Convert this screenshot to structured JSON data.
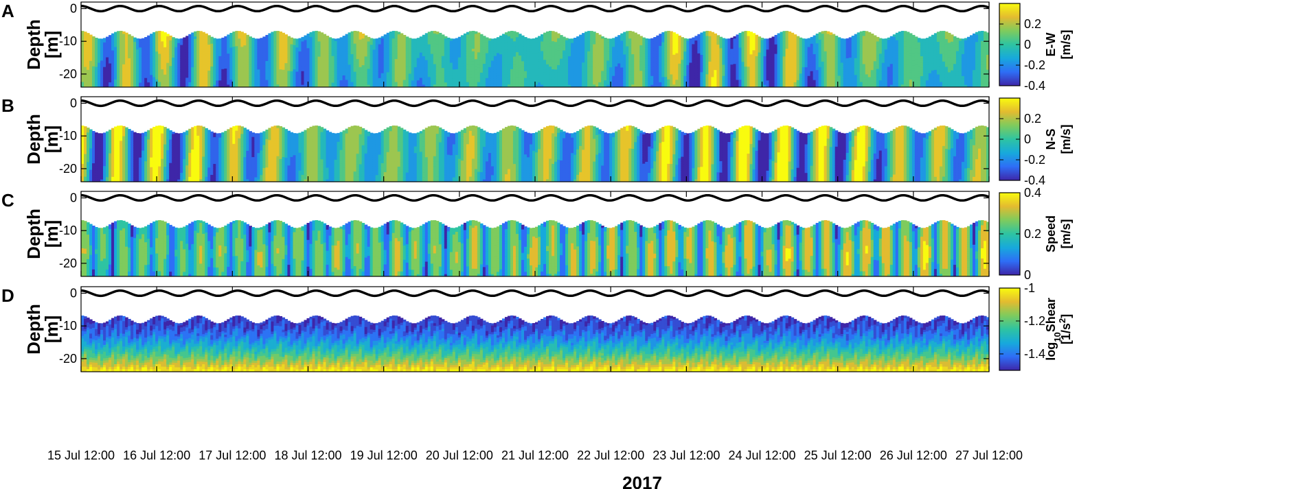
{
  "chart_data": [
    {
      "type": "heatmap",
      "panel_label": "A",
      "ylabel": [
        "Depth",
        "[m]"
      ],
      "yticks": [
        0,
        -10,
        -20
      ],
      "ylim": [
        -24,
        2
      ],
      "colorbar": {
        "label": [
          "E-W",
          "[m/s]"
        ],
        "ticks": [
          "0.2",
          "0",
          "-0.2",
          "-0.4"
        ],
        "tick_values": [
          0.2,
          0,
          -0.2,
          -0.4
        ],
        "range": [
          -0.4,
          0.4
        ]
      },
      "field": "eastward_velocity",
      "x_start": "15 Jul 12:00",
      "x_end": "27 Jul 12:00"
    },
    {
      "type": "heatmap",
      "panel_label": "B",
      "ylabel": [
        "Depth",
        "[m]"
      ],
      "yticks": [
        0,
        -10,
        -20
      ],
      "ylim": [
        -24,
        2
      ],
      "colorbar": {
        "label": [
          "N-S",
          "[m/s]"
        ],
        "ticks": [
          "0.2",
          "0",
          "-0.2",
          "-0.4"
        ],
        "tick_values": [
          0.2,
          0,
          -0.2,
          -0.4
        ],
        "range": [
          -0.4,
          0.4
        ]
      },
      "field": "northward_velocity",
      "x_start": "15 Jul 12:00",
      "x_end": "27 Jul 12:00"
    },
    {
      "type": "heatmap",
      "panel_label": "C",
      "ylabel": [
        "Depth",
        "[m]"
      ],
      "yticks": [
        0,
        -10,
        -20
      ],
      "ylim": [
        -24,
        2
      ],
      "colorbar": {
        "label": [
          "Speed",
          "[m/s]"
        ],
        "ticks": [
          "0.4",
          "0.2",
          "0"
        ],
        "tick_values": [
          0.4,
          0.2,
          0
        ],
        "range": [
          0,
          0.4
        ]
      },
      "field": "speed",
      "x_start": "15 Jul 12:00",
      "x_end": "27 Jul 12:00"
    },
    {
      "type": "heatmap",
      "panel_label": "D",
      "ylabel": [
        "Depth",
        "[m]"
      ],
      "yticks": [
        0,
        -10,
        -20
      ],
      "ylim": [
        -24,
        2
      ],
      "colorbar": {
        "label": [
          "log10Shear",
          "[1/s2]"
        ],
        "ticks": [
          "-1",
          "-1.2",
          "-1.4"
        ],
        "tick_values": [
          -1,
          -1.2,
          -1.4
        ],
        "range": [
          -1.5,
          -1
        ]
      },
      "field": "log10_shear",
      "x_start": "15 Jul 12:00",
      "x_end": "27 Jul 12:00"
    }
  ],
  "x_tick_labels": [
    "15 Jul 12:00",
    "16 Jul 12:00",
    "17 Jul 12:00",
    "18 Jul 12:00",
    "19 Jul 12:00",
    "20 Jul 12:00",
    "21 Jul 12:00",
    "22 Jul 12:00",
    "23 Jul 12:00",
    "24 Jul 12:00",
    "25 Jul 12:00",
    "26 Jul 12:00",
    "27 Jul 12:00"
  ],
  "x_axis_year": "2017",
  "tide_period_days": 0.5175,
  "tide_amplitude_m": 1,
  "surface_depth_m": -8,
  "colormap": [
    "#3e26a8",
    "#2e6ef6",
    "#17a9dc",
    "#2ec4a2",
    "#7fcb5d",
    "#e3bb30",
    "#f9fb0e"
  ]
}
